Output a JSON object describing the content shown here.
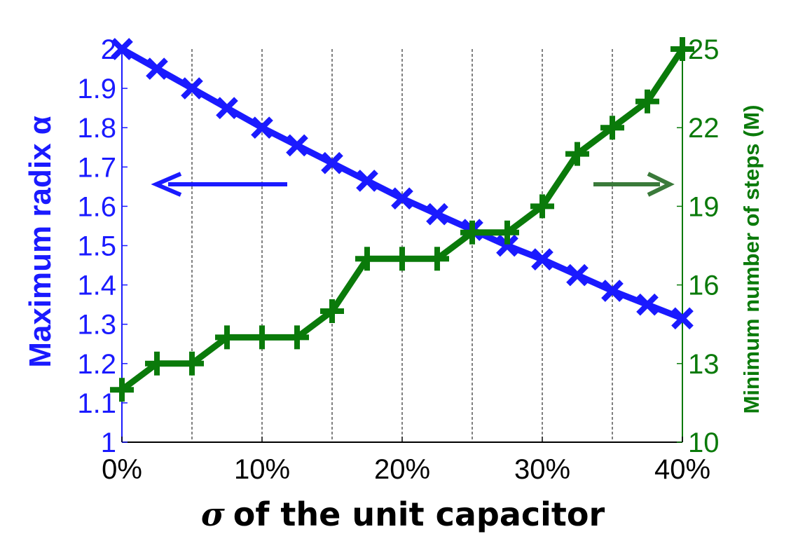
{
  "chart_data": {
    "type": "line",
    "xlabel_symbol": "σ",
    "xlabel": "of the unit capacitor",
    "x": [
      0,
      2.5,
      5,
      7.5,
      10,
      12.5,
      15,
      17.5,
      20,
      22.5,
      25,
      27.5,
      30,
      32.5,
      35,
      37.5,
      40
    ],
    "x_unit": "%",
    "xlim": [
      0,
      40
    ],
    "x_ticks": [
      "0%",
      "10%",
      "20%",
      "30%",
      "40%"
    ],
    "x_tick_values": [
      0,
      10,
      20,
      30,
      40
    ],
    "vertical_gridlines_at": [
      5,
      10,
      15,
      20,
      25,
      30,
      35,
      40
    ],
    "grid": "vertical dashed",
    "left_axis": {
      "label": "Maximum radix α",
      "color": "#1a1aff",
      "ylim": [
        1,
        2
      ],
      "ticks": [
        "1",
        "1.1",
        "1.2",
        "1.3",
        "1.4",
        "1.5",
        "1.6",
        "1.7",
        "1.8",
        "1.9",
        "2"
      ],
      "tick_values": [
        1,
        1.1,
        1.2,
        1.3,
        1.4,
        1.5,
        1.6,
        1.7,
        1.8,
        1.9,
        2.0
      ]
    },
    "right_axis": {
      "label": "Minimum number of steps (M)",
      "color": "#0a7a0a",
      "ylim": [
        10,
        25
      ],
      "ticks": [
        "10",
        "13",
        "16",
        "19",
        "22",
        "25"
      ],
      "tick_values": [
        10,
        13,
        16,
        19,
        22,
        25
      ]
    },
    "series": [
      {
        "axis": "left",
        "marker": "x",
        "color": "#1a1aff",
        "values": [
          2.0,
          1.95,
          1.9,
          1.85,
          1.8,
          1.755,
          1.71,
          1.665,
          1.62,
          1.58,
          1.54,
          1.5,
          1.465,
          1.425,
          1.385,
          1.35,
          1.315
        ]
      },
      {
        "axis": "right",
        "marker": "+",
        "color": "#0a7a0a",
        "values": [
          12,
          13,
          13,
          14,
          14,
          14,
          15,
          17,
          17,
          17,
          18,
          18,
          19,
          21,
          22,
          23,
          25
        ]
      }
    ],
    "annotations": [
      {
        "type": "arrow",
        "direction": "left",
        "points_to": "left axis",
        "color": "#1a1aff"
      },
      {
        "type": "arrow",
        "direction": "right",
        "points_to": "right axis",
        "color": "#3a7a3a"
      }
    ]
  }
}
